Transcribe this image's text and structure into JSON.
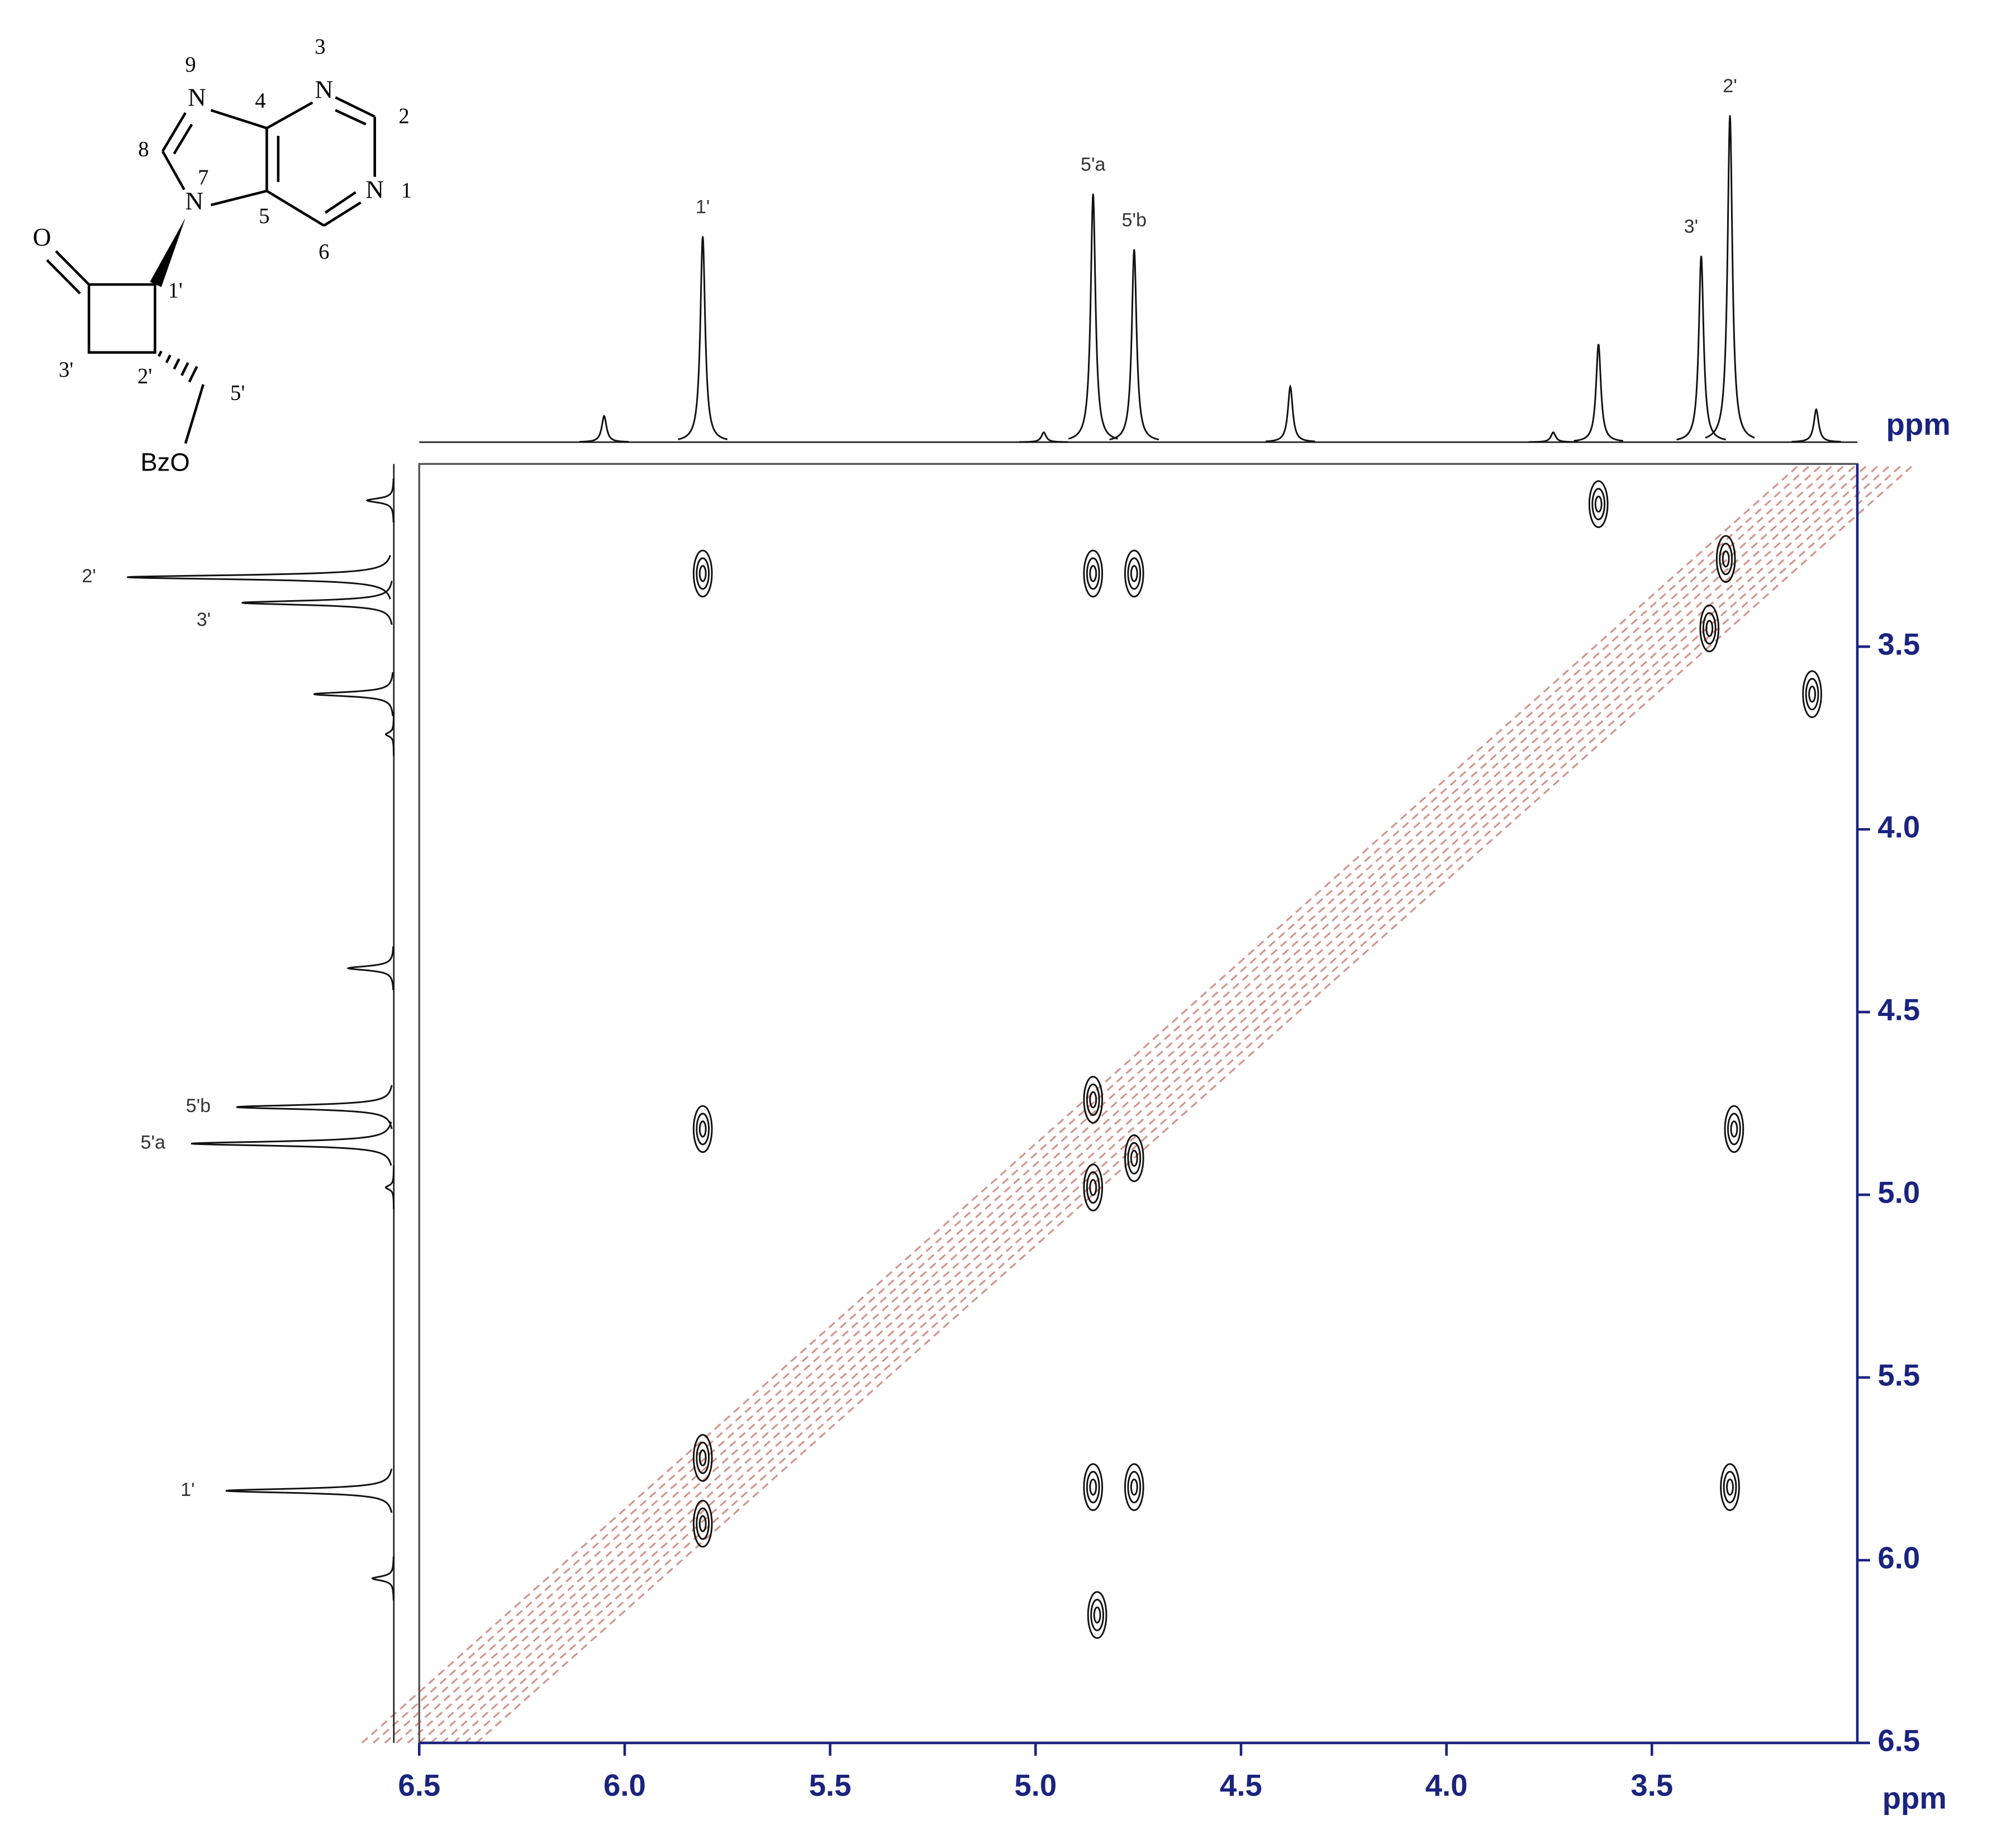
{
  "structure": {
    "labels": [
      "N",
      "N",
      "N",
      "N",
      "O",
      "BzO",
      "1",
      "2",
      "3",
      "4",
      "5",
      "6",
      "7",
      "8",
      "9",
      "1'",
      "2'",
      "3'",
      "5'"
    ]
  },
  "chart_data": {
    "type": "scatter",
    "x_label": "ppm",
    "y_label": "ppm",
    "xlim": [
      6.5,
      3.0
    ],
    "ylim": [
      3.0,
      6.5
    ],
    "xticks": [
      6.5,
      {
        "value": 6.0,
        "label": "6.0"
      },
      5.5,
      {
        "value": 5.0,
        "label": "5.0"
      },
      4.5,
      {
        "value": 4.0,
        "label": "4.0"
      },
      3.5
    ],
    "yticks": [
      3.5,
      {
        "value": 4.0,
        "label": "4.0"
      },
      4.5,
      {
        "value": 5.0,
        "label": "5.0"
      },
      5.5,
      {
        "value": 6.0,
        "label": "6.0"
      },
      6.5
    ],
    "color": "#111111",
    "diagonal_color": "#b03a2e",
    "axis_color": "#1a237e",
    "x": [
      5.81,
      4.86,
      4.76,
      3.63,
      3.32,
      3.36,
      3.11,
      5.81,
      4.86,
      4.76,
      3.3,
      4.86,
      5.81,
      5.81,
      4.86,
      4.76,
      3.31,
      4.85
    ],
    "values": [
      3.3,
      3.3,
      3.3,
      3.11,
      3.26,
      3.45,
      3.63,
      4.82,
      4.74,
      4.9,
      4.82,
      4.98,
      5.72,
      5.9,
      5.8,
      5.8,
      5.8,
      6.15
    ],
    "projection": {
      "shifts": [
        6.05,
        5.81,
        4.98,
        4.86,
        4.76,
        4.38,
        3.74,
        3.63,
        3.38,
        3.31,
        3.1
      ],
      "intensity": [
        8,
        63,
        3,
        76,
        59,
        17,
        3,
        30,
        57,
        100,
        10
      ],
      "labels": [
        null,
        "1'",
        null,
        "5'a",
        "5'b",
        null,
        null,
        null,
        "3'",
        "2'",
        null
      ]
    }
  }
}
